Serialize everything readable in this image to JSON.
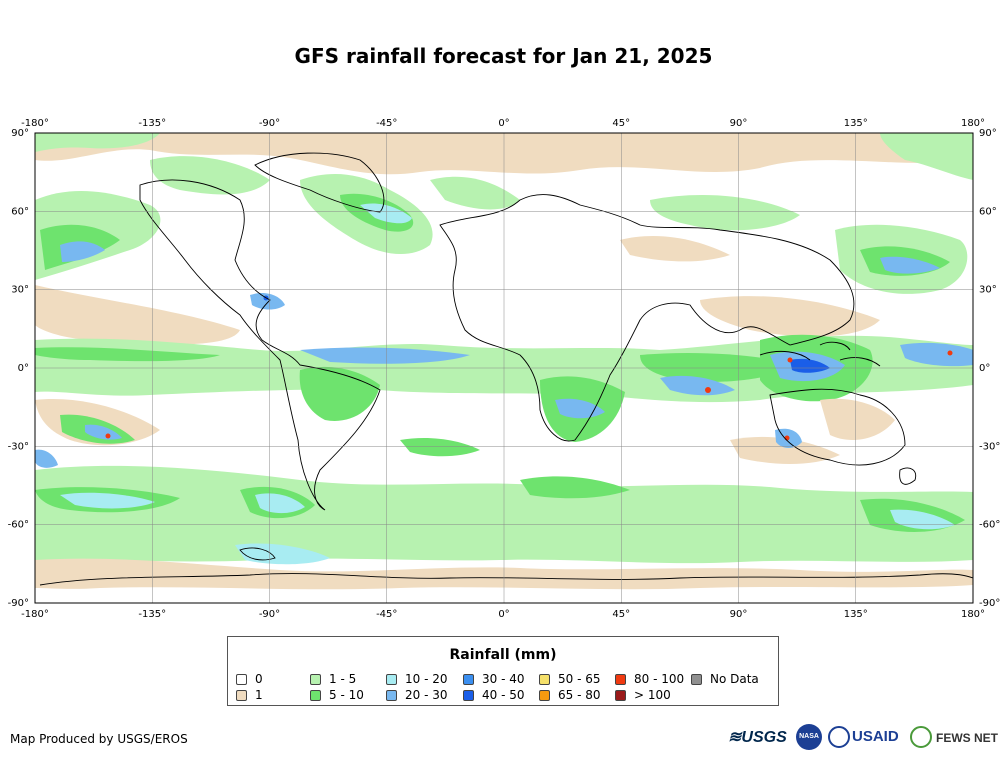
{
  "title": "GFS rainfall forecast for Jan 21, 2025",
  "axes": {
    "lon_top": [
      "-180°",
      "-135°",
      "-90°",
      "-45°",
      "0°",
      "45°",
      "90°",
      "135°",
      "180°"
    ],
    "lon_bottom": [
      "-180°",
      "-135°",
      "-90°",
      "-45°",
      "0°",
      "45°",
      "90°",
      "135°",
      "180°"
    ],
    "lat_left": [
      "90°",
      "60°",
      "30°",
      "0°",
      "-30°",
      "-60°",
      "-90°"
    ],
    "lat_right": [
      "90°",
      "60°",
      "30°",
      "0°",
      "-30°",
      "-60°",
      "-90°"
    ]
  },
  "legend": {
    "title": "Rainfall (mm)",
    "items": [
      {
        "label": "0",
        "color": "#ffffff"
      },
      {
        "label": "1",
        "color": "#f0dcc0"
      },
      {
        "label": "1 - 5",
        "color": "#b7f2b0"
      },
      {
        "label": "5 - 10",
        "color": "#6ee36e"
      },
      {
        "label": "10 - 20",
        "color": "#a8ecf2"
      },
      {
        "label": "20 - 30",
        "color": "#78b8f0"
      },
      {
        "label": "30 - 40",
        "color": "#3b8ff0"
      },
      {
        "label": "40 - 50",
        "color": "#1a5ee8"
      },
      {
        "label": "50 - 65",
        "color": "#f5e06a"
      },
      {
        "label": "65 - 80",
        "color": "#f59a10"
      },
      {
        "label": "80 - 100",
        "color": "#f03a10"
      },
      {
        "label": "> 100",
        "color": "#9a1a1a"
      },
      {
        "label": "No Data",
        "color": "#909090"
      }
    ]
  },
  "footer": {
    "credit": "Map Produced by USGS/EROS",
    "logos": [
      "USGS",
      "NASA",
      "USAID",
      "FEWS NET"
    ]
  }
}
